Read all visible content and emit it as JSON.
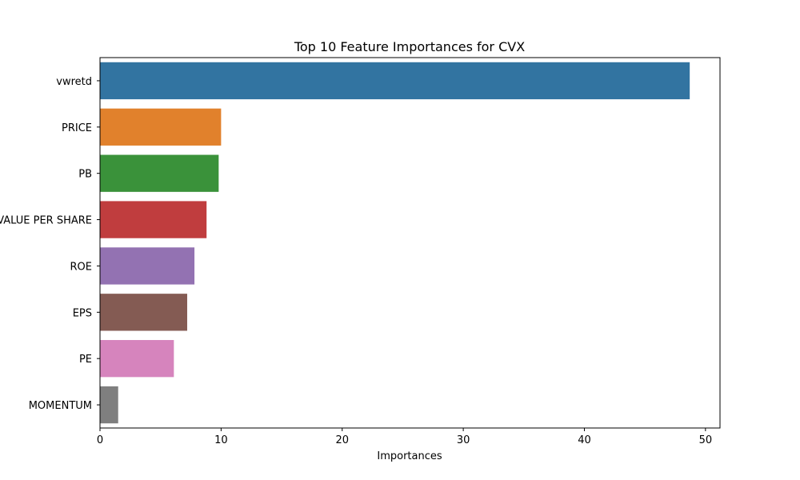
{
  "chart_data": {
    "type": "bar",
    "orientation": "horizontal",
    "title": "Top 10 Feature Importances for CVX",
    "xlabel": "Importances",
    "ylabel": "",
    "xlim": [
      0,
      51.2
    ],
    "xticks": [
      0,
      10,
      20,
      30,
      40,
      50
    ],
    "grid": false,
    "categories": [
      "vwretd",
      "PRICE",
      "PB",
      "BOOK VALUE PER SHARE",
      "ROE",
      "EPS",
      "PE",
      "MOMENTUM"
    ],
    "values": [
      48.7,
      10.0,
      9.8,
      8.8,
      7.8,
      7.2,
      6.1,
      1.5
    ],
    "colors": [
      "#3274a1",
      "#e1812c",
      "#3a923a",
      "#c03d3e",
      "#9372b2",
      "#845b53",
      "#d684bd",
      "#7f7f7f"
    ]
  }
}
